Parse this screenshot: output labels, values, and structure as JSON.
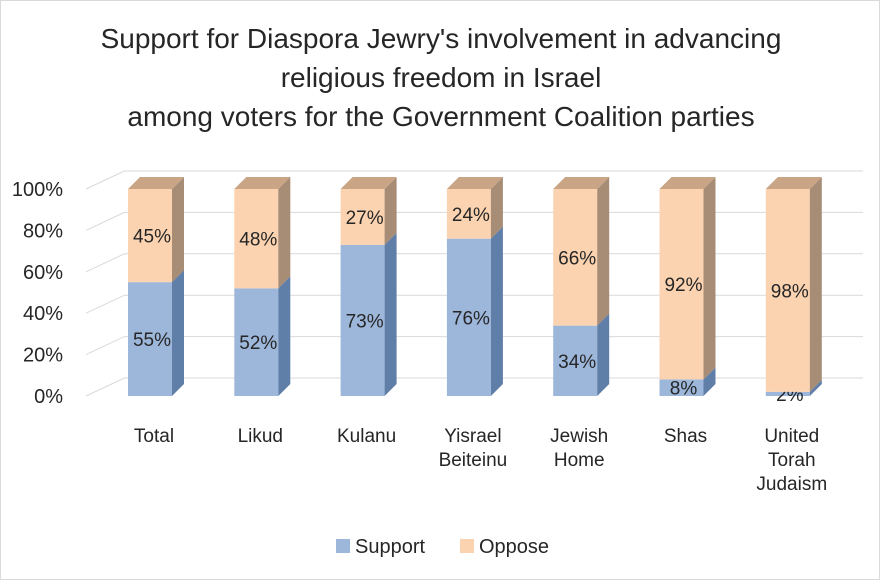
{
  "chart_data": {
    "type": "bar",
    "stacked": true,
    "three_d": true,
    "title": "Support for Diaspora Jewry's involvement in advancing\nreligious freedom in Israel\namong voters for the Government Coalition parties",
    "categories": [
      "Total",
      "Likud",
      "Kulanu",
      "Yisrael\nBeiteinu",
      "Jewish\nHome",
      "Shas",
      "United\nTorah\nJudaism"
    ],
    "series": [
      {
        "name": "Support",
        "values": [
          55,
          52,
          73,
          76,
          34,
          8,
          2
        ],
        "color": "#9db7db",
        "side_color": "#5f7ea8",
        "top_color": "#7f9cc8"
      },
      {
        "name": "Oppose",
        "values": [
          45,
          48,
          27,
          24,
          66,
          92,
          98
        ],
        "color": "#fbd3b0",
        "side_color": "#a78c76",
        "top_color": "#c9a586"
      }
    ],
    "data_labels": [
      [
        "55%",
        "52%",
        "73%",
        "76%",
        "34%",
        "8%",
        "2%"
      ],
      [
        "45%",
        "48%",
        "27%",
        "24%",
        "66%",
        "92%",
        "98%"
      ]
    ],
    "y_ticks": [
      "0%",
      "20%",
      "40%",
      "60%",
      "80%",
      "100%"
    ],
    "ylim": [
      0,
      100
    ],
    "grid": true,
    "legend_position": "bottom"
  }
}
